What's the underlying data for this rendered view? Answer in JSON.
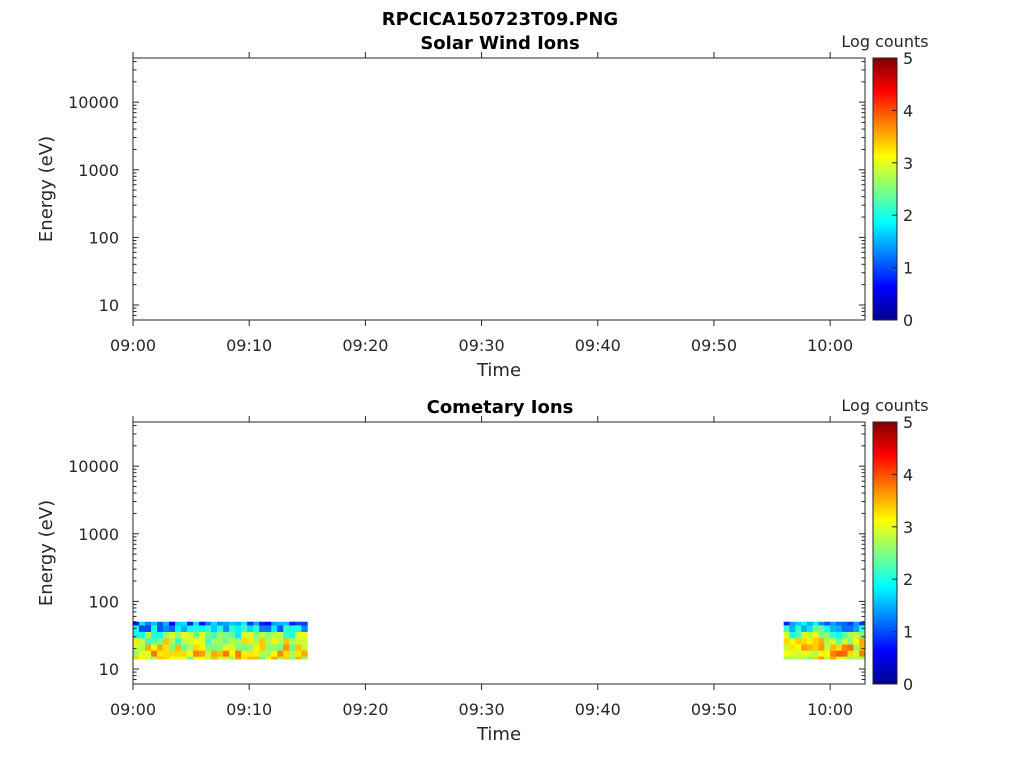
{
  "figure": {
    "title": "RPCICA150723T09.PNG"
  },
  "colormap": [
    "#00008f",
    "#0000ff",
    "#0080ff",
    "#00ffff",
    "#80ff80",
    "#ffff00",
    "#ff8000",
    "#ff0000",
    "#800000"
  ],
  "chart_data": [
    {
      "type": "heatmap",
      "title": "Solar Wind Ions",
      "xlabel": "Time",
      "ylabel": "Energy (eV)",
      "x_scale": "time",
      "xlim": [
        "09:00",
        "10:03"
      ],
      "x_ticks": [
        "09:00",
        "09:10",
        "09:20",
        "09:30",
        "09:40",
        "09:50",
        "10:00"
      ],
      "y_scale": "log",
      "ylim": [
        6,
        45000
      ],
      "y_ticks": [
        10,
        100,
        1000,
        10000
      ],
      "y_tick_labels": [
        "10",
        "100",
        "1000",
        "10000"
      ],
      "colorbar": {
        "label": "Log counts",
        "range": [
          0,
          5
        ],
        "ticks": [
          "0",
          "1",
          "2",
          "3",
          "4",
          "5"
        ]
      },
      "grid": false,
      "data_blocks": []
    },
    {
      "type": "heatmap",
      "title": "Cometary Ions",
      "xlabel": "Time",
      "ylabel": "Energy (eV)",
      "x_scale": "time",
      "xlim": [
        "09:00",
        "10:03"
      ],
      "x_ticks": [
        "09:00",
        "09:10",
        "09:20",
        "09:30",
        "09:40",
        "09:50",
        "10:00"
      ],
      "y_scale": "log",
      "ylim": [
        6,
        45000
      ],
      "y_ticks": [
        10,
        100,
        1000,
        10000
      ],
      "y_tick_labels": [
        "10",
        "100",
        "1000",
        "10000"
      ],
      "colorbar": {
        "label": "Log counts",
        "range": [
          0,
          5
        ],
        "ticks": [
          "0",
          "1",
          "2",
          "3",
          "4",
          "5"
        ]
      },
      "grid": false,
      "data_blocks": [
        {
          "t_start": "09:00",
          "t_end": "09:15",
          "energy_bins": [
            14,
            17,
            21,
            26,
            32,
            40,
            50
          ],
          "log_counts_by_bin": [
            3.0,
            3.2,
            3.0,
            2.8,
            2.4,
            1.6,
            1.2
          ]
        },
        {
          "t_start": "09:56",
          "t_end": "10:03",
          "energy_bins": [
            14,
            17,
            21,
            26,
            32,
            40,
            50
          ],
          "log_counts_by_bin": [
            3.1,
            3.4,
            3.2,
            2.9,
            2.5,
            1.8,
            1.4
          ]
        }
      ]
    }
  ]
}
